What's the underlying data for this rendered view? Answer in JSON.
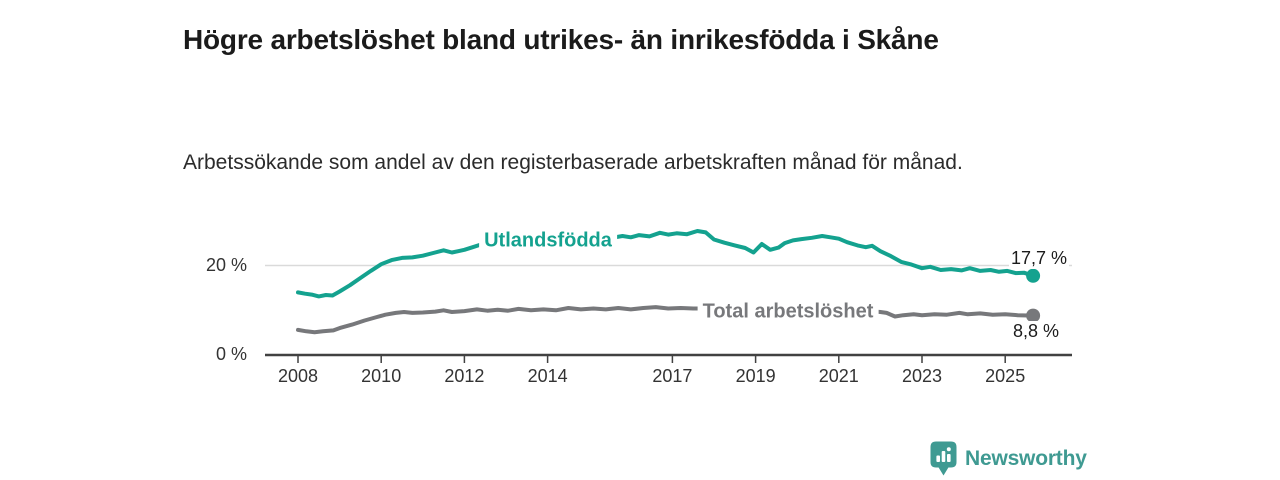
{
  "header": {
    "title": "Högre arbetslöshet bland utrikes- än inrikesfödda i Skåne",
    "subtitle": "Arbetssökande som andel av den registerbaserade arbetskraften månad för månad."
  },
  "branding": {
    "logo_text": "Newsworthy",
    "logo_color": "#3f9a92"
  },
  "chart_data": {
    "type": "line",
    "title": "Högre arbetslöshet bland utrikes- än inrikesfödda i Skåne",
    "subtitle": "Arbetssökande som andel av den registerbaserade arbetskraften månad för månad.",
    "xlabel": "",
    "ylabel": "",
    "x_range": [
      2008,
      2025.67
    ],
    "ylim": [
      0,
      28
    ],
    "grid": "single light horizontal gridline at 20 %",
    "legend_position": "inline labels on lines",
    "x_ticks": [
      2008,
      2010,
      2012,
      2014,
      2017,
      2019,
      2021,
      2023,
      2025
    ],
    "y_ticks": [
      {
        "value": 20,
        "label": "20 %"
      },
      {
        "value": 0,
        "label": "0 %"
      }
    ],
    "series": [
      {
        "name": "Utlandsfödda",
        "color": "#14a28f",
        "end_label": "17,7 %",
        "end_value": 17.7,
        "points": [
          [
            2008.0,
            14.0
          ],
          [
            2008.17,
            13.7
          ],
          [
            2008.33,
            13.5
          ],
          [
            2008.5,
            13.1
          ],
          [
            2008.67,
            13.4
          ],
          [
            2008.83,
            13.3
          ],
          [
            2009.0,
            14.2
          ],
          [
            2009.25,
            15.6
          ],
          [
            2009.5,
            17.2
          ],
          [
            2009.75,
            18.8
          ],
          [
            2010.0,
            20.3
          ],
          [
            2010.25,
            21.2
          ],
          [
            2010.5,
            21.7
          ],
          [
            2010.75,
            21.8
          ],
          [
            2011.0,
            22.2
          ],
          [
            2011.25,
            22.8
          ],
          [
            2011.5,
            23.4
          ],
          [
            2011.7,
            22.9
          ],
          [
            2011.85,
            23.2
          ],
          [
            2012.0,
            23.5
          ],
          [
            2012.2,
            24.1
          ],
          [
            2012.4,
            24.7
          ],
          [
            2012.55,
            23.9
          ],
          [
            2012.75,
            24.3
          ],
          [
            2013.0,
            24.5
          ],
          [
            2013.5,
            24.9
          ],
          [
            2014.0,
            25.2
          ],
          [
            2014.5,
            25.5
          ],
          [
            2015.0,
            25.8
          ],
          [
            2015.5,
            26.1
          ],
          [
            2015.8,
            26.6
          ],
          [
            2016.0,
            26.3
          ],
          [
            2016.2,
            26.8
          ],
          [
            2016.45,
            26.5
          ],
          [
            2016.7,
            27.3
          ],
          [
            2016.9,
            26.9
          ],
          [
            2017.1,
            27.2
          ],
          [
            2017.35,
            27.0
          ],
          [
            2017.6,
            27.7
          ],
          [
            2017.8,
            27.4
          ],
          [
            2018.0,
            25.8
          ],
          [
            2018.25,
            25.1
          ],
          [
            2018.5,
            24.5
          ],
          [
            2018.75,
            23.9
          ],
          [
            2018.95,
            22.9
          ],
          [
            2019.15,
            24.8
          ],
          [
            2019.35,
            23.5
          ],
          [
            2019.55,
            24.0
          ],
          [
            2019.7,
            25.0
          ],
          [
            2019.9,
            25.6
          ],
          [
            2020.1,
            25.9
          ],
          [
            2020.35,
            26.2
          ],
          [
            2020.6,
            26.6
          ],
          [
            2020.8,
            26.3
          ],
          [
            2021.0,
            26.0
          ],
          [
            2021.2,
            25.2
          ],
          [
            2021.45,
            24.5
          ],
          [
            2021.65,
            24.1
          ],
          [
            2021.8,
            24.4
          ],
          [
            2022.0,
            23.2
          ],
          [
            2022.25,
            22.1
          ],
          [
            2022.5,
            20.8
          ],
          [
            2022.75,
            20.2
          ],
          [
            2023.0,
            19.4
          ],
          [
            2023.2,
            19.7
          ],
          [
            2023.45,
            19.0
          ],
          [
            2023.7,
            19.2
          ],
          [
            2023.95,
            18.9
          ],
          [
            2024.15,
            19.4
          ],
          [
            2024.4,
            18.8
          ],
          [
            2024.65,
            19.0
          ],
          [
            2024.85,
            18.6
          ],
          [
            2025.05,
            18.8
          ],
          [
            2025.25,
            18.3
          ],
          [
            2025.45,
            18.4
          ],
          [
            2025.67,
            17.7
          ]
        ]
      },
      {
        "name": "Total arbetslöshet",
        "color": "#77787b",
        "end_label": "8,8 %",
        "end_value": 8.8,
        "points": [
          [
            2008.0,
            5.6
          ],
          [
            2008.2,
            5.3
          ],
          [
            2008.4,
            5.1
          ],
          [
            2008.6,
            5.3
          ],
          [
            2008.85,
            5.5
          ],
          [
            2009.0,
            6.0
          ],
          [
            2009.3,
            6.8
          ],
          [
            2009.6,
            7.7
          ],
          [
            2009.9,
            8.5
          ],
          [
            2010.1,
            9.0
          ],
          [
            2010.35,
            9.4
          ],
          [
            2010.55,
            9.6
          ],
          [
            2010.75,
            9.4
          ],
          [
            2011.0,
            9.5
          ],
          [
            2011.3,
            9.7
          ],
          [
            2011.5,
            10.0
          ],
          [
            2011.7,
            9.6
          ],
          [
            2012.0,
            9.8
          ],
          [
            2012.3,
            10.2
          ],
          [
            2012.55,
            9.9
          ],
          [
            2012.8,
            10.1
          ],
          [
            2013.05,
            9.9
          ],
          [
            2013.3,
            10.3
          ],
          [
            2013.6,
            10.0
          ],
          [
            2013.9,
            10.2
          ],
          [
            2014.2,
            10.0
          ],
          [
            2014.5,
            10.5
          ],
          [
            2014.8,
            10.2
          ],
          [
            2015.1,
            10.4
          ],
          [
            2015.4,
            10.2
          ],
          [
            2015.7,
            10.5
          ],
          [
            2016.0,
            10.2
          ],
          [
            2016.3,
            10.5
          ],
          [
            2016.6,
            10.7
          ],
          [
            2016.9,
            10.4
          ],
          [
            2017.2,
            10.5
          ],
          [
            2017.5,
            10.4
          ],
          [
            2018.0,
            10.4
          ],
          [
            2018.5,
            10.3
          ],
          [
            2019.0,
            10.2
          ],
          [
            2019.5,
            10.1
          ],
          [
            2020.0,
            10.3
          ],
          [
            2020.5,
            10.5
          ],
          [
            2021.0,
            10.4
          ],
          [
            2021.5,
            10.0
          ],
          [
            2022.0,
            9.6
          ],
          [
            2022.15,
            9.4
          ],
          [
            2022.35,
            8.6
          ],
          [
            2022.55,
            8.9
          ],
          [
            2022.8,
            9.1
          ],
          [
            2023.0,
            8.9
          ],
          [
            2023.3,
            9.1
          ],
          [
            2023.6,
            9.0
          ],
          [
            2023.9,
            9.4
          ],
          [
            2024.1,
            9.1
          ],
          [
            2024.4,
            9.3
          ],
          [
            2024.7,
            9.0
          ],
          [
            2025.0,
            9.1
          ],
          [
            2025.3,
            8.9
          ],
          [
            2025.67,
            8.8
          ]
        ]
      }
    ]
  }
}
